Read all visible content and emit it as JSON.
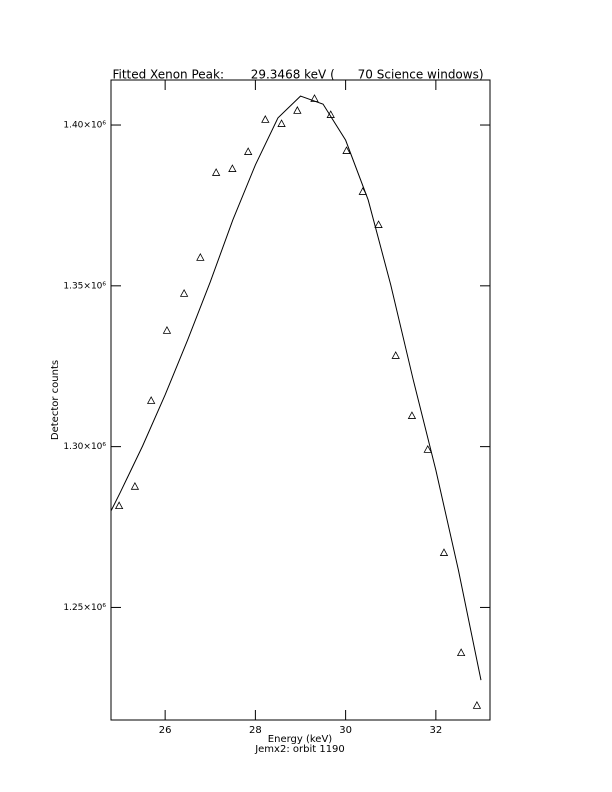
{
  "chart_data": {
    "type": "scatter",
    "title": "Fitted Xenon Peak:       29.3468 keV (      70 Science windows)",
    "x_label": "Energy (keV)",
    "subtitle": "Jemx2: orbit 1190",
    "y_label": "Detector counts",
    "xlim": [
      24.8,
      33.2
    ],
    "xticks": [
      26,
      28,
      30,
      32
    ],
    "ylim": [
      1215000,
      1414000
    ],
    "yticks": [
      {
        "value": 1250000,
        "label": "1.25×10⁶"
      },
      {
        "value": 1300000,
        "label": "1.30×10⁶"
      },
      {
        "value": 1350000,
        "label": "1.35×10⁶"
      },
      {
        "value": 1400000,
        "label": "1.40×10⁶"
      }
    ],
    "color": "#000000",
    "points": {
      "x": [
        24.98,
        25.33,
        25.69,
        26.04,
        26.42,
        26.78,
        27.13,
        27.49,
        27.84,
        28.22,
        28.58,
        28.93,
        29.31,
        29.67,
        30.02,
        30.38,
        30.73,
        31.11,
        31.47,
        31.82,
        32.18,
        32.56,
        32.91
      ],
      "y": [
        1281500,
        1287500,
        1314200,
        1336000,
        1347500,
        1358700,
        1385100,
        1386300,
        1391600,
        1401600,
        1400300,
        1404400,
        1408100,
        1403100,
        1391900,
        1379200,
        1368900,
        1328200,
        1309500,
        1299000,
        1266900,
        1235800,
        1219400
      ]
    },
    "fit": {
      "x": [
        24.8,
        25,
        25.5,
        26,
        26.5,
        27,
        27.5,
        28,
        28.5,
        29,
        29.5,
        30,
        30.5,
        31,
        31.5,
        32,
        32.5,
        33
      ],
      "y": [
        1280000,
        1285600,
        1300200,
        1316100,
        1333200,
        1351200,
        1370500,
        1387600,
        1402200,
        1409000,
        1406500,
        1395300,
        1376700,
        1350300,
        1320700,
        1292700,
        1261600,
        1227400
      ]
    }
  }
}
